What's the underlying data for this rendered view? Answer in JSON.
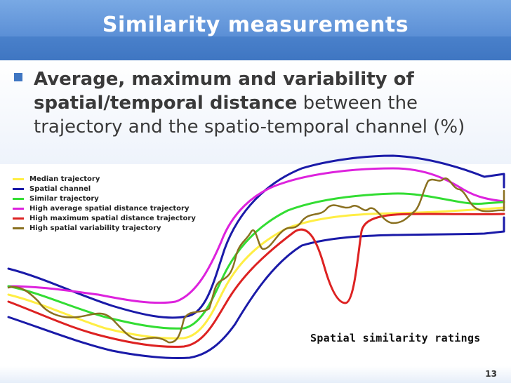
{
  "slide": {
    "title": "Similarity measurements",
    "bullet_bold": "Average, maximum and variability of spatial/temporal distance",
    "bullet_rest": " between the trajectory and the spatio-temporal channel (%)",
    "page_number": "13",
    "accent_color": "#3f76c2"
  },
  "chart_data": {
    "type": "line",
    "title": "Spatial similarity ratings",
    "legend_position": "top-left",
    "series": [
      {
        "name": "Median trajectory",
        "color": "#ffee44"
      },
      {
        "name": "Spatial channel",
        "color": "#1a1aa8"
      },
      {
        "name": "Similar trajectory",
        "color": "#33dd33"
      },
      {
        "name": "High average spatial distance trajectory",
        "color": "#dd22dd"
      },
      {
        "name": "High maximum spatial distance trajectory",
        "color": "#dd2222"
      },
      {
        "name": "High spatial variability trajectory",
        "color": "#8a7020"
      }
    ]
  }
}
